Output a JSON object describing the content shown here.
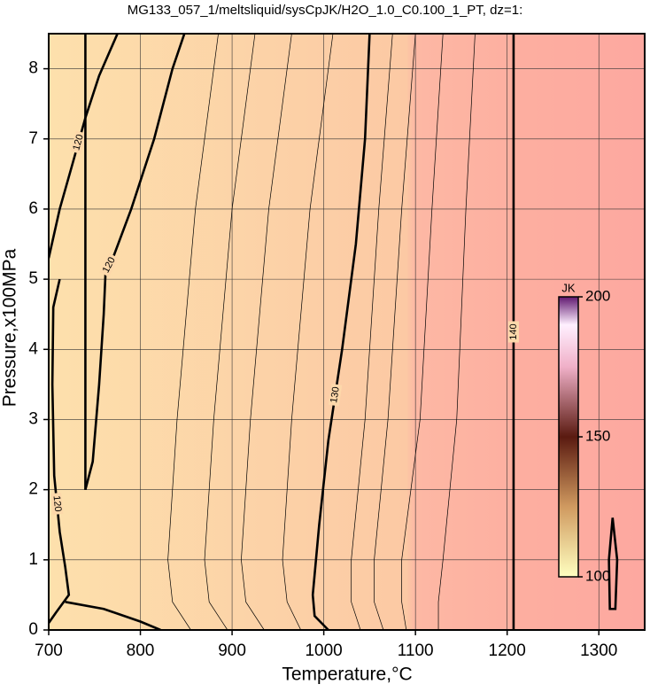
{
  "chart_data": {
    "type": "contour",
    "title": "MG133_057_1/meltsliquid/sysCpJK/H2O_1.0_C0.100_1_PT, dz=1:",
    "x_label": "Temperature,°C",
    "y_label": "Pressure,x100MPa",
    "xlim": [
      700,
      1350
    ],
    "xticks": [
      700,
      800,
      900,
      1000,
      1100,
      1200,
      1300
    ],
    "ylim": [
      0,
      8.5
    ],
    "yticks": [
      0,
      1,
      2,
      3,
      4,
      5,
      6,
      7,
      8
    ],
    "grid": true,
    "contours": [
      {
        "level": 120,
        "bold": true,
        "label": true,
        "x": [
          712,
          705,
          704,
          706,
          712,
          718,
          722,
          708,
          700
        ],
        "y": [
          5.0,
          4.6,
          3.5,
          2.2,
          1.4,
          0.9,
          0.5,
          0.25,
          0.1
        ]
      },
      {
        "level": 120,
        "bold": true,
        "label": true,
        "x": [
          700,
          712,
          725,
          740,
          755,
          775
        ],
        "y": [
          5.3,
          6.0,
          6.6,
          7.3,
          7.9,
          8.5
        ]
      },
      {
        "level": 120,
        "bold": true,
        "label": true,
        "x": [
          740,
          748,
          755,
          760,
          762,
          770,
          790,
          815,
          835,
          848
        ],
        "y": [
          2.0,
          2.4,
          3.5,
          4.5,
          5.1,
          5.3,
          6.0,
          7.0,
          8.0,
          8.5
        ]
      },
      {
        "level": 120,
        "bold": true,
        "label": false,
        "x": [
          740,
          740
        ],
        "y": [
          2.0,
          8.5
        ]
      },
      {
        "level": 120,
        "bold": true,
        "label": false,
        "x": [
          718,
          760,
          800,
          822
        ],
        "y": [
          0.4,
          0.3,
          0.12,
          0
        ]
      },
      {
        "level": 122,
        "bold": false,
        "label": false,
        "x": [
          885,
          860,
          840,
          830,
          835,
          855
        ],
        "y": [
          8.5,
          6,
          3,
          1,
          0.4,
          0
        ]
      },
      {
        "level": 124,
        "bold": false,
        "label": false,
        "x": [
          925,
          900,
          880,
          870,
          875,
          895
        ],
        "y": [
          8.5,
          6,
          3,
          1,
          0.4,
          0
        ]
      },
      {
        "level": 126,
        "bold": false,
        "label": false,
        "x": [
          965,
          940,
          920,
          910,
          915,
          935
        ],
        "y": [
          8.5,
          6,
          3,
          1,
          0.4,
          0
        ]
      },
      {
        "level": 128,
        "bold": false,
        "label": false,
        "x": [
          1010,
          985,
          965,
          955,
          960,
          975
        ],
        "y": [
          8.5,
          6,
          3,
          1,
          0.4,
          0
        ]
      },
      {
        "level": 130,
        "bold": true,
        "label": true,
        "x": [
          1050,
          1045,
          1035,
          1020,
          1005,
          995,
          988,
          990,
          1005
        ],
        "y": [
          8.5,
          7.0,
          5.5,
          4.0,
          2.7,
          1.5,
          0.5,
          0.2,
          0
        ]
      },
      {
        "level": 132,
        "bold": false,
        "label": false,
        "x": [
          1075,
          1060,
          1045,
          1030,
          1030,
          1040
        ],
        "y": [
          8.5,
          6,
          3,
          1,
          0.4,
          0
        ]
      },
      {
        "level": 134,
        "bold": false,
        "label": false,
        "x": [
          1100,
          1085,
          1070,
          1055,
          1055,
          1065
        ],
        "y": [
          8.5,
          6,
          3,
          1,
          0.4,
          0
        ]
      },
      {
        "level": 136,
        "bold": false,
        "label": false,
        "x": [
          1130,
          1118,
          1105,
          1085,
          1085,
          1090
        ],
        "y": [
          8.5,
          6,
          3,
          1,
          0.4,
          0
        ]
      },
      {
        "level": 138,
        "bold": false,
        "label": false,
        "x": [
          1165,
          1155,
          1145,
          1130,
          1125,
          1125
        ],
        "y": [
          8.5,
          6,
          3,
          1,
          0.4,
          0
        ]
      },
      {
        "level": 140,
        "bold": true,
        "label": true,
        "x": [
          1207,
          1207
        ],
        "y": [
          0,
          8.5
        ]
      },
      {
        "level": 140,
        "bold": true,
        "label": false,
        "x": [
          1315,
          1320,
          1318,
          1312,
          1311,
          1315
        ],
        "y": [
          1.6,
          1.0,
          0.3,
          0.3,
          1.0,
          1.6
        ]
      }
    ],
    "colorbar": {
      "label": "JK",
      "lim": [
        100,
        200
      ],
      "ticks": [
        100,
        150,
        200
      ]
    }
  }
}
